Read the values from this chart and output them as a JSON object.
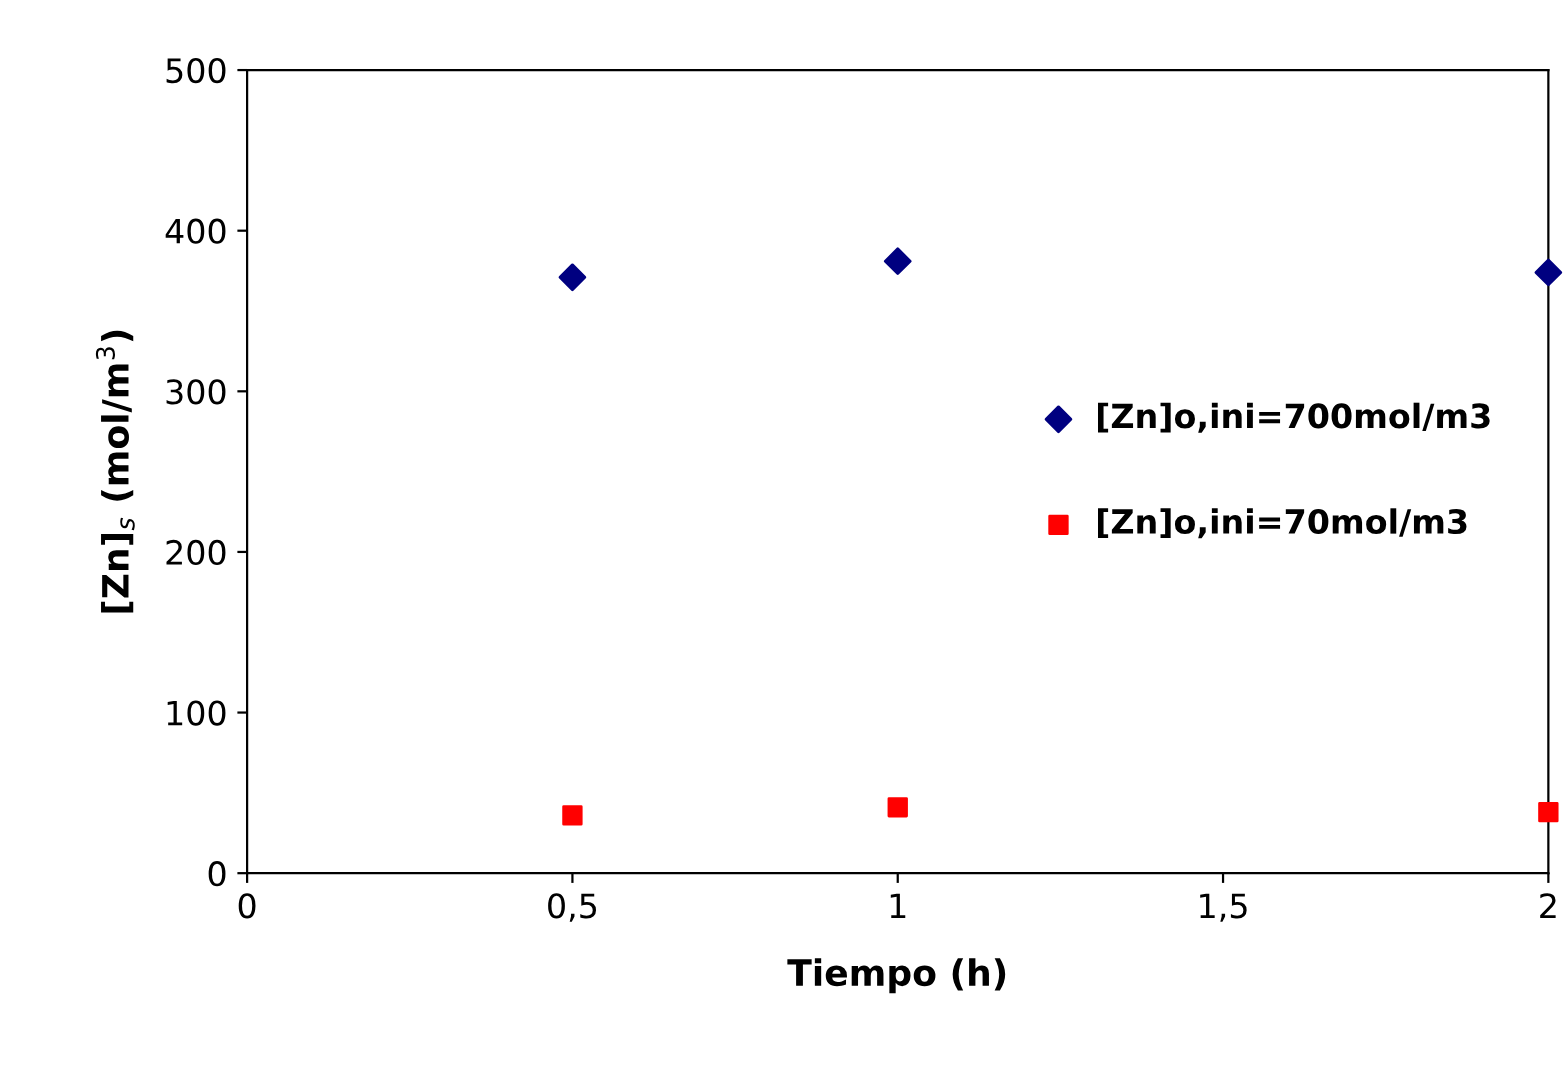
{
  "chart_data": {
    "type": "scatter",
    "xlabel": "Tiempo (h)",
    "ylabel": "[Zn]$_{s}$ (mol/m$^{3}$)",
    "x": [
      0.5,
      1,
      2
    ],
    "series": [
      {
        "name": "[Zn]o,ini=700mol/m3",
        "color": "#000080",
        "marker": "diamond",
        "values": [
          371,
          381,
          374
        ]
      },
      {
        "name": "[Zn]o,ini=70mol/m3",
        "color": "#ff0000",
        "marker": "square",
        "values": [
          36,
          41,
          38
        ]
      }
    ],
    "xlim": [
      0,
      2
    ],
    "ylim": [
      0,
      500
    ],
    "xticks": [
      0,
      {
        "value": 0.5,
        "label": "0,5"
      },
      1,
      {
        "value": 1.5,
        "label": "1,5"
      },
      2
    ],
    "yticks": [
      0,
      100,
      200,
      300,
      400,
      500
    ],
    "grid": false,
    "legend": "right"
  }
}
